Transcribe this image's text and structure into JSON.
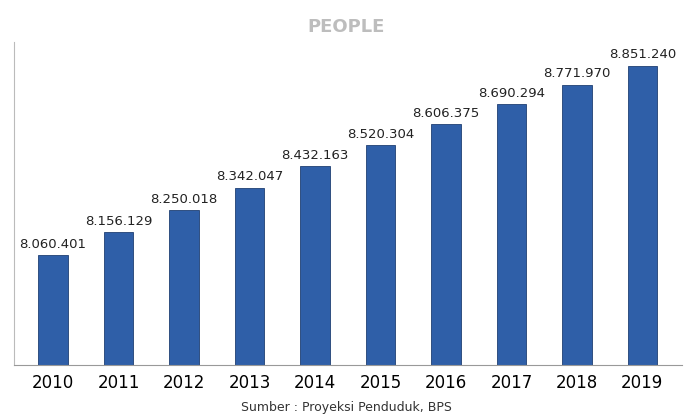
{
  "chart_data": {
    "type": "bar",
    "categories": [
      "2010",
      "2011",
      "2012",
      "2013",
      "2014",
      "2015",
      "2016",
      "2017",
      "2018",
      "2019"
    ],
    "values": [
      8060401,
      8156129,
      8250018,
      8342047,
      8432163,
      8520304,
      8606375,
      8690294,
      8771970,
      8851240
    ],
    "value_labels": [
      "8.060.401",
      "8.156.129",
      "8.250.018",
      "8.342.047",
      "8.432.163",
      "8.520.304",
      "8.606.375",
      "8.690.294",
      "8.771.970",
      "8.851.240"
    ],
    "data_labels": true,
    "color": "#2f5fa8",
    "ylim": [
      7600000,
      8950000
    ],
    "yticks": [],
    "tick_labels": "x",
    "grid": false,
    "annotations": [
      "PEOPLE",
      "Sumber : Proyeksi Penduduk, BPS"
    ]
  }
}
